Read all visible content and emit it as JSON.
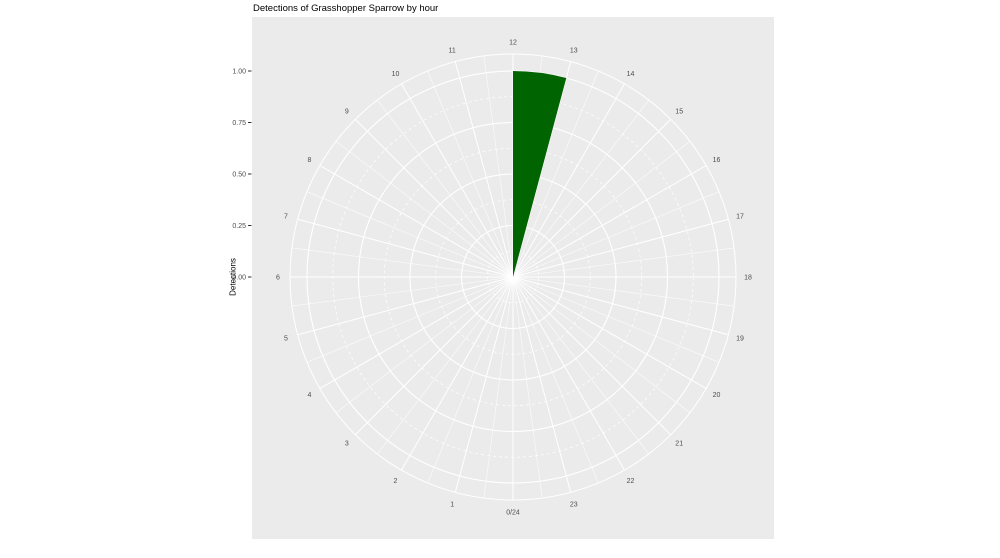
{
  "chart_data": {
    "type": "bar",
    "coord": "polar",
    "title": "Detections of Grasshopper Sparrow by hour",
    "xlabel": "",
    "ylabel": "Detections",
    "theta": "hour of day (24h, clockwise, 12 at top, 0/24 at bottom)",
    "categories": [
      "0/24",
      "1",
      "2",
      "3",
      "4",
      "5",
      "6",
      "7",
      "8",
      "9",
      "10",
      "11",
      "12",
      "13",
      "14",
      "15",
      "16",
      "17",
      "18",
      "19",
      "20",
      "21",
      "22",
      "23"
    ],
    "values": [
      0,
      0,
      0,
      0,
      0,
      0,
      0,
      0,
      0,
      0,
      0,
      0,
      1,
      0,
      0,
      0,
      0,
      0,
      0,
      0,
      0,
      0,
      0,
      0
    ],
    "r_tick_values": [
      0,
      0.25,
      0.5,
      0.75,
      1
    ],
    "r_tick_labels": [
      "0.00",
      "0.25",
      "0.50",
      "0.75",
      "1.00"
    ],
    "r_minor_values": [
      0.125,
      0.375,
      0.625,
      0.875
    ],
    "rlim": [
      0,
      1.08
    ],
    "grid": true,
    "legend": false,
    "colors": {
      "bar_fill": "#006400",
      "panel_bg": "#EBEBEB",
      "grid": "#FFFFFF",
      "axis_text": "#4D4D4D",
      "tick_mark": "#333333",
      "title_text": "#000000",
      "page_bg": "#FFFFFF"
    }
  }
}
